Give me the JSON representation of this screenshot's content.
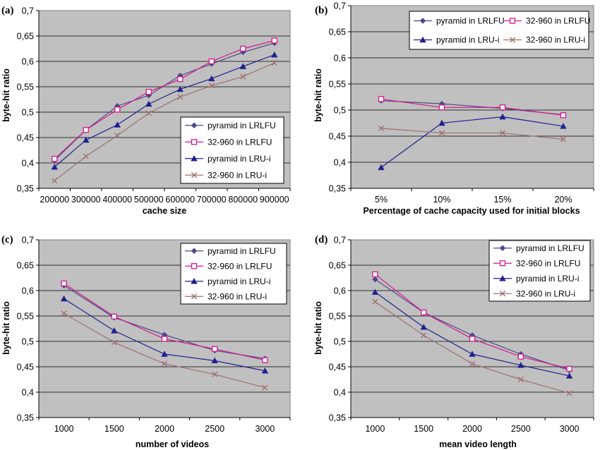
{
  "series_styles": [
    {
      "color": "#4a4a8a",
      "marker": "diamond"
    },
    {
      "color": "#d4168c",
      "marker": "square"
    },
    {
      "color": "#202090",
      "marker": "triangle"
    },
    {
      "color": "#a07070",
      "marker": "x"
    }
  ],
  "chart_data": [
    {
      "type": "line",
      "panel_label": "(a)",
      "xlabel": "cache size",
      "ylabel": "byte-hit ratio",
      "categories": [
        "200000",
        "300000",
        "400000",
        "500000",
        "600000",
        "700000",
        "800000",
        "900000"
      ],
      "ylim": [
        0.35,
        0.7
      ],
      "yticks": [
        "0,35",
        "0,4",
        "0,45",
        "0,5",
        "0,55",
        "0,6",
        "0,65",
        "0,7"
      ],
      "legend_position": "bottom-right",
      "series": [
        {
          "name": "pyramid in LRLFU",
          "values": [
            0.405,
            0.465,
            0.512,
            0.533,
            0.572,
            0.595,
            0.618,
            0.636
          ]
        },
        {
          "name": "32-960 in LRLFU",
          "values": [
            0.408,
            0.465,
            0.505,
            0.54,
            0.565,
            0.6,
            0.625,
            0.641
          ]
        },
        {
          "name": "pyramid in LRU-i",
          "values": [
            0.392,
            0.445,
            0.475,
            0.516,
            0.545,
            0.566,
            0.59,
            0.613
          ]
        },
        {
          "name": "32-960 in LRU-i",
          "values": [
            0.365,
            0.413,
            0.454,
            0.498,
            0.53,
            0.552,
            0.57,
            0.597
          ]
        }
      ]
    },
    {
      "type": "line",
      "panel_label": "(b)",
      "xlabel": "Percentage of cache capacity  used for initial blocks",
      "ylabel": "byte-hit ratio",
      "categories": [
        "5%",
        "10%",
        "15%",
        "20%"
      ],
      "ylim": [
        0.35,
        0.7
      ],
      "yticks": [
        "0,35",
        "0,4",
        "0,45",
        "0,5",
        "0,55",
        "0,6",
        "0,65",
        "0,7"
      ],
      "legend_position": "top",
      "series": [
        {
          "name": "pyramid in LRLFU",
          "values": [
            0.518,
            0.512,
            0.503,
            0.491
          ]
        },
        {
          "name": "32-960 in LRLFU",
          "values": [
            0.521,
            0.505,
            0.505,
            0.49
          ]
        },
        {
          "name": "pyramid in LRU-i",
          "values": [
            0.39,
            0.475,
            0.487,
            0.469
          ]
        },
        {
          "name": "32-960 in LRU-i",
          "values": [
            0.465,
            0.456,
            0.456,
            0.444
          ]
        }
      ]
    },
    {
      "type": "line",
      "panel_label": "(c)",
      "xlabel": "number of videos",
      "ylabel": "byte-hit ratio",
      "categories": [
        "1000",
        "1500",
        "2000",
        "2500",
        "3000"
      ],
      "ylim": [
        0.35,
        0.7
      ],
      "yticks": [
        "0,35",
        "0,4",
        "0,45",
        "0,5",
        "0,55",
        "0,6",
        "0,65",
        "0,7"
      ],
      "legend_position": "top-right",
      "series": [
        {
          "name": "pyramid in LRLFU",
          "values": [
            0.61,
            0.547,
            0.513,
            0.482,
            0.466
          ]
        },
        {
          "name": "32-960 in LRLFU",
          "values": [
            0.614,
            0.549,
            0.505,
            0.485,
            0.463
          ]
        },
        {
          "name": "pyramid in LRU-i",
          "values": [
            0.584,
            0.521,
            0.475,
            0.462,
            0.442
          ]
        },
        {
          "name": "32-960 in LRU-i",
          "values": [
            0.555,
            0.498,
            0.456,
            0.435,
            0.409
          ]
        }
      ]
    },
    {
      "type": "line",
      "panel_label": "(d)",
      "xlabel": "mean video length",
      "ylabel": "byte-hit ratio",
      "categories": [
        "1000",
        "1500",
        "2000",
        "2500",
        "3000"
      ],
      "ylim": [
        0.35,
        0.7
      ],
      "yticks": [
        "0,35",
        "0,4",
        "0,45",
        "0,5",
        "0,55",
        "0,6",
        "0,65",
        "0,7"
      ],
      "legend_position": "top-right",
      "series": [
        {
          "name": "pyramid in LRLFU",
          "values": [
            0.622,
            0.557,
            0.512,
            0.475,
            0.443
          ]
        },
        {
          "name": "32-960 in LRLFU",
          "values": [
            0.632,
            0.557,
            0.505,
            0.47,
            0.446
          ]
        },
        {
          "name": "pyramid in LRU-i",
          "values": [
            0.597,
            0.528,
            0.475,
            0.453,
            0.432
          ]
        },
        {
          "name": "32-960 in LRU-i",
          "values": [
            0.578,
            0.512,
            0.456,
            0.425,
            0.398
          ]
        }
      ]
    }
  ]
}
